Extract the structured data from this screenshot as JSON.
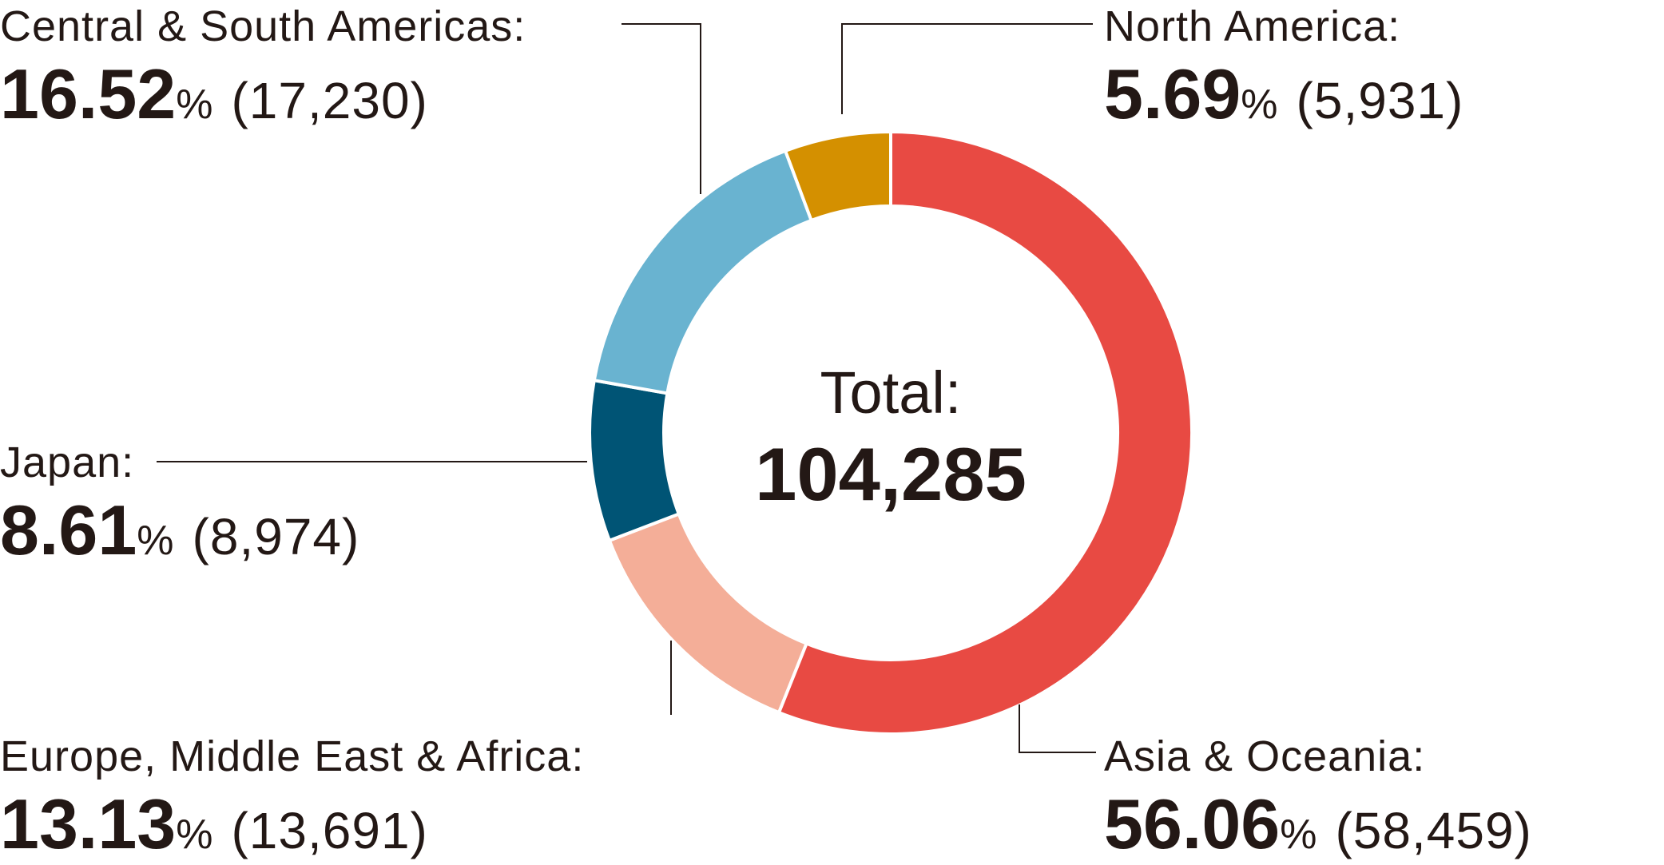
{
  "chart_data": {
    "type": "pie",
    "center_label": "Total:",
    "center_value": "104,285",
    "total": 104285,
    "slices": [
      {
        "key": "asia",
        "label": "Asia & Oceania:",
        "percent": 56.06,
        "percent_text": "56.06",
        "count": 58459,
        "count_text": "(58,459)",
        "color": "#E84A43"
      },
      {
        "key": "europe",
        "label": "Europe, Middle East & Africa:",
        "percent": 13.13,
        "percent_text": "13.13",
        "count": 13691,
        "count_text": "(13,691)",
        "color": "#F4AE98"
      },
      {
        "key": "japan",
        "label": "Japan:",
        "percent": 8.61,
        "percent_text": "8.61",
        "count": 8974,
        "count_text": "(8,974)",
        "color": "#005475"
      },
      {
        "key": "csa",
        "label": "Central & South Americas:",
        "percent": 16.52,
        "percent_text": "16.52",
        "count": 17230,
        "count_text": "(17,230)",
        "color": "#69B3D0"
      },
      {
        "key": "na",
        "label": "North America:",
        "percent": 5.69,
        "percent_text": "5.69",
        "count": 5931,
        "count_text": "(5,931)",
        "color": "#D49000"
      }
    ],
    "percent_symbol": "%"
  }
}
